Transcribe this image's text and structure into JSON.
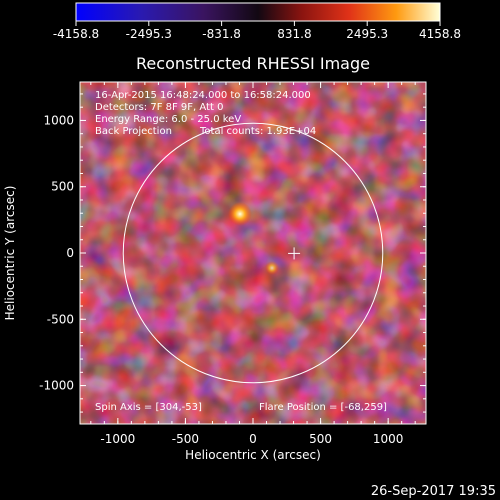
{
  "window": {
    "title": "Reconstructed RHESSI Image",
    "timestamp": "26-Sep-2017 19:35"
  },
  "colorbar": {
    "ticks": [
      "-4158.8",
      "-2495.3",
      "-831.8",
      "831.8",
      "2495.3",
      "4158.8"
    ],
    "colors": [
      "#0000ff",
      "#3a1a8c",
      "#1a0a1a",
      "#c0281a",
      "#ff8a00",
      "#ffffc8"
    ]
  },
  "axes": {
    "xlabel": "Heliocentric X (arcsec)",
    "ylabel": "Heliocentric Y (arcsec)",
    "xticks": [
      "-1000",
      "-500",
      "0",
      "500",
      "1000"
    ],
    "yticks": [
      "1000",
      "500",
      "0",
      "-500",
      "-1000"
    ],
    "xlim": [
      -1280,
      1280
    ],
    "ylim": [
      -1290,
      1290
    ]
  },
  "info": {
    "line1": "16-Apr-2015 16:48:24.000 to 16:58:24.000",
    "line2": "Detectors: 7F 8F 9F, Att 0",
    "line3": "Energy Range: 6.0 - 25.0 keV",
    "line4_left": "Back Projection",
    "line4_right": "Total counts: 1.93E+04",
    "spin_axis": "Spin Axis = [304,-53]",
    "flare_position": "Flare Position = [-68,259]"
  },
  "solar_disk": {
    "center": [
      0,
      0
    ],
    "radius": 960,
    "color": "#ffffff"
  },
  "map_marks": [
    {
      "name": "flare-marker",
      "x": 304,
      "y": -3
    }
  ]
}
